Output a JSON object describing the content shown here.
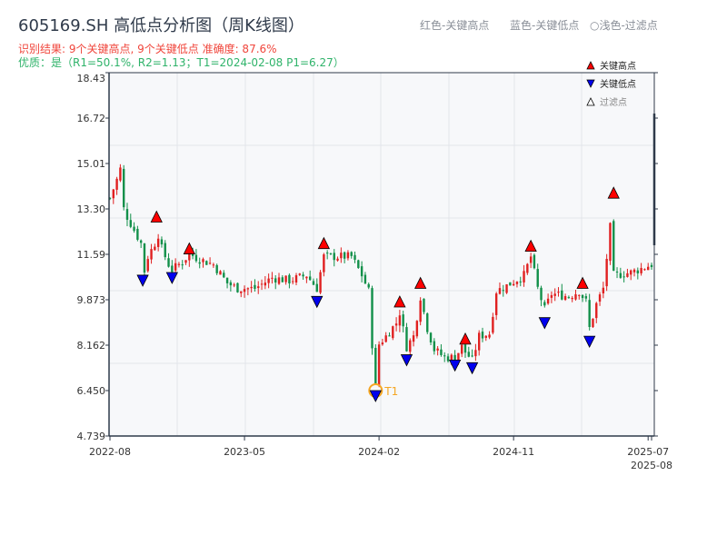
{
  "header": {
    "title": "605169.SH 高低点分析图（周K线图）",
    "result_line": "识别结果: 9个关键高点, 9个关键低点  准确度: 87.6%",
    "quality_line": "优质：是（R1=50.1%, R2=1.13；T1=2024-02-08 P1=6.27）",
    "legend_red": "红色-关键高点",
    "legend_blue": "蓝色-关键低点",
    "legend_light": "○浅色-过滤点"
  },
  "colors": {
    "up": "#e02020",
    "down": "#12904a",
    "high_marker": "#ff0000",
    "low_marker": "#0000ee",
    "t1": "#f5a623",
    "axis": "#2f3a4a",
    "plot_bg": "#f7f8fa"
  },
  "chart_data": {
    "type": "candlestick",
    "title": "605169.SH 高低点分析图（周K线图）",
    "ylim": [
      4.739,
      18.43
    ],
    "yticks": [
      "18.43",
      "16.72",
      "15.01",
      "13.30",
      "11.59",
      "9.873",
      "8.162",
      "6.450",
      "4.739"
    ],
    "xticks": [
      {
        "label": "2022-08",
        "week": 0
      },
      {
        "label": "2023-05",
        "week": 39
      },
      {
        "label": "2024-02",
        "week": 78
      },
      {
        "label": "2024-11",
        "week": 117
      },
      {
        "label": "2025-07",
        "week": 156
      },
      {
        "label": "2025-08",
        "week": 157
      }
    ],
    "total_weeks": 158,
    "price_path": [
      [
        0,
        13.7
      ],
      [
        2,
        14.4
      ],
      [
        3,
        14.8
      ],
      [
        4,
        13.3
      ],
      [
        5,
        13.0
      ],
      [
        7,
        12.5
      ],
      [
        9,
        12.0
      ],
      [
        9.5,
        11.0
      ],
      [
        10.5,
        10.9
      ],
      [
        11,
        11.5
      ],
      [
        13,
        12.0
      ],
      [
        13.5,
        12.6
      ],
      [
        15,
        11.8
      ],
      [
        17,
        11.2
      ],
      [
        18,
        11.0
      ],
      [
        21,
        11.3
      ],
      [
        23,
        11.6
      ],
      [
        26,
        11.4
      ],
      [
        30,
        11.2
      ],
      [
        34,
        10.5
      ],
      [
        37,
        10.3
      ],
      [
        42,
        10.3
      ],
      [
        47,
        10.7
      ],
      [
        52,
        10.6
      ],
      [
        57,
        10.8
      ],
      [
        60,
        10.3
      ],
      [
        62,
        11.5
      ],
      [
        65,
        11.5
      ],
      [
        70,
        11.5
      ],
      [
        73,
        10.8
      ],
      [
        75,
        10.2
      ],
      [
        76,
        8.2
      ],
      [
        77,
        6.6
      ],
      [
        78,
        8.2
      ],
      [
        80,
        8.5
      ],
      [
        83,
        9.0
      ],
      [
        84,
        9.4
      ],
      [
        86,
        8.1
      ],
      [
        88,
        8.5
      ],
      [
        90,
        10.0
      ],
      [
        92,
        8.8
      ],
      [
        94,
        8.0
      ],
      [
        97,
        7.7
      ],
      [
        100,
        7.7
      ],
      [
        102,
        8.1
      ],
      [
        103,
        7.9
      ],
      [
        105,
        7.6
      ],
      [
        107,
        8.5
      ],
      [
        110,
        8.6
      ],
      [
        112,
        10.2
      ],
      [
        115,
        10.4
      ],
      [
        120,
        10.8
      ],
      [
        122,
        11.5
      ],
      [
        124,
        10.3
      ],
      [
        126,
        9.5
      ],
      [
        128,
        10.1
      ],
      [
        133,
        10.0
      ],
      [
        136,
        10.2
      ],
      [
        138,
        9.8
      ],
      [
        139,
        8.8
      ],
      [
        141,
        9.7
      ],
      [
        143,
        10.3
      ],
      [
        145,
        12.6
      ],
      [
        146,
        10.8
      ],
      [
        151,
        10.9
      ],
      [
        157,
        11.2
      ]
    ],
    "key_highs": [
      {
        "date": "2022-11",
        "week": 13.5,
        "price": 12.8
      },
      {
        "date": "2023-01",
        "week": 23,
        "price": 11.6
      },
      {
        "date": "2023-10",
        "week": 62,
        "price": 11.8
      },
      {
        "date": "2024-03",
        "week": 84,
        "price": 9.6
      },
      {
        "date": "2024-04",
        "week": 90,
        "price": 10.3
      },
      {
        "date": "2024-07",
        "week": 103,
        "price": 8.2
      },
      {
        "date": "2024-12",
        "week": 122,
        "price": 11.7
      },
      {
        "date": "2025-03",
        "week": 137,
        "price": 10.3
      },
      {
        "date": "2025-05",
        "week": 146,
        "price": 13.7
      }
    ],
    "key_lows": [
      {
        "date": "2022-10",
        "week": 9.5,
        "price": 10.8
      },
      {
        "date": "2022-12",
        "week": 18,
        "price": 10.9
      },
      {
        "date": "2023-09",
        "week": 60,
        "price": 10.0
      },
      {
        "date": "2024-02",
        "week": 77,
        "price": 6.45
      },
      {
        "date": "2024-03",
        "week": 86,
        "price": 7.8
      },
      {
        "date": "2024-06",
        "week": 100,
        "price": 7.6
      },
      {
        "date": "2024-07",
        "week": 105,
        "price": 7.5
      },
      {
        "date": "2025-01",
        "week": 126,
        "price": 9.2
      },
      {
        "date": "2025-04",
        "week": 139,
        "price": 8.5
      }
    ],
    "t1": {
      "label": "T1",
      "date": "2024-02-08",
      "week": 77,
      "price": 6.27
    },
    "legend": [
      {
        "label": "关键高点"
      },
      {
        "label": "关键低点"
      },
      {
        "label": "过滤点"
      }
    ],
    "legend_position": "top-right"
  }
}
